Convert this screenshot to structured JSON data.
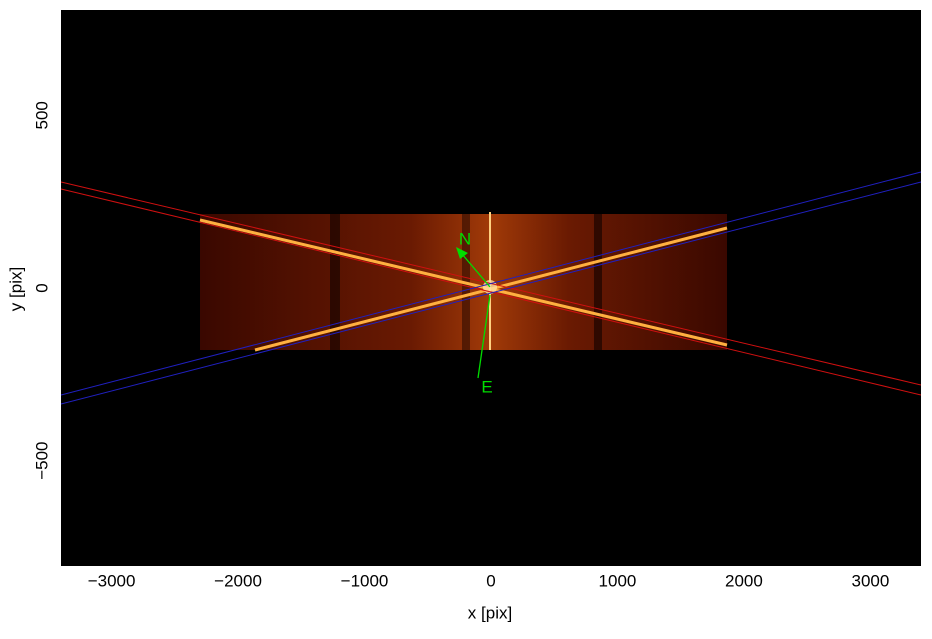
{
  "chart_data": {
    "type": "image",
    "xlabel": "x [pix]",
    "ylabel": "y [pix]",
    "xlim": [
      -3400,
      3400
    ],
    "ylim": [
      -805,
      805
    ],
    "xticks": [
      {
        "value": -3000,
        "label": "−3000"
      },
      {
        "value": -2000,
        "label": "−2000"
      },
      {
        "value": -1000,
        "label": "−1000"
      },
      0,
      1000,
      2000,
      3000
    ],
    "yticks": [
      {
        "value": -500,
        "label": "−500"
      },
      0,
      500
    ],
    "annotations": [
      "N",
      "E"
    ]
  }
}
